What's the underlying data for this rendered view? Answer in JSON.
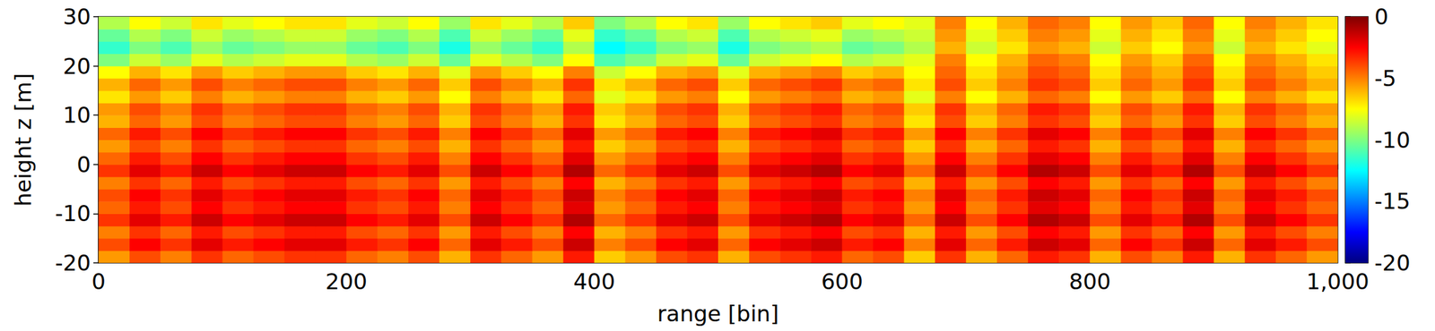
{
  "chart_data": {
    "type": "heatmap",
    "xlabel": "range [bin]",
    "ylabel": "height z [m]",
    "xlim": [
      0,
      1000
    ],
    "xticks": [
      0,
      200,
      400,
      600,
      800,
      1000
    ],
    "ylim": [
      -20,
      30
    ],
    "yticks": [
      -20,
      -10,
      0,
      10,
      20,
      30
    ],
    "x_bins": [
      0,
      25,
      50,
      75,
      100,
      125,
      150,
      175,
      200,
      225,
      250,
      275,
      300,
      325,
      350,
      375,
      400,
      425,
      450,
      475,
      500,
      525,
      550,
      575,
      600,
      625,
      650,
      675,
      700,
      725,
      750,
      775,
      800,
      825,
      850,
      875,
      900,
      925,
      950,
      975,
      1000
    ],
    "z_bins": [
      -20,
      -17.5,
      -15,
      -12.5,
      -10,
      -7.5,
      -5,
      -2.5,
      0,
      2.5,
      5,
      7.5,
      10,
      12.5,
      15,
      17.5,
      20,
      22.5,
      25,
      27.5,
      30
    ],
    "values": [
      [
        -5.5,
        -4,
        -5,
        -3.5,
        -4.5,
        -4,
        -3.5,
        -3.5,
        -4.5,
        -5,
        -4,
        -6,
        -3.5,
        -4.5,
        -5.5,
        -3,
        -6.5,
        -5.5,
        -4,
        -3.5,
        -6,
        -4,
        -3.5,
        -3,
        -4.5,
        -4,
        -6.5,
        -3.5,
        -6,
        -4.5,
        -3,
        -3.5,
        -6,
        -4,
        -5,
        -3,
        -6,
        -3.5,
        -4.5,
        -5.5
      ],
      [
        -4,
        -2.5,
        -3.5,
        -2,
        -3,
        -2.5,
        -2,
        -2,
        -3,
        -3.5,
        -2.5,
        -4.5,
        -2,
        -3,
        -4,
        -1.5,
        -5,
        -4,
        -2.5,
        -2,
        -4.5,
        -2.5,
        -2,
        -1.5,
        -3,
        -2.5,
        -5,
        -2,
        -4.5,
        -3,
        -1.5,
        -2,
        -4.5,
        -2.5,
        -3.5,
        -1.5,
        -4.5,
        -2,
        -3,
        -4
      ],
      [
        -5,
        -3.5,
        -4.5,
        -3,
        -4,
        -3.5,
        -3,
        -3,
        -4,
        -4.5,
        -3.5,
        -5.5,
        -3,
        -4,
        -5,
        -2.5,
        -6,
        -5,
        -3.5,
        -3,
        -5.5,
        -3.5,
        -3,
        -2.5,
        -4,
        -3.5,
        -6,
        -3,
        -5.5,
        -4,
        -2.5,
        -3,
        -5.5,
        -3.5,
        -4.5,
        -2.5,
        -5.5,
        -3,
        -4,
        -5
      ],
      [
        -3.5,
        -2,
        -3,
        -1.5,
        -2.5,
        -2,
        -1.5,
        -1.5,
        -2.5,
        -3,
        -2,
        -4,
        -1.5,
        -2.5,
        -3.5,
        -1,
        -4.5,
        -3.5,
        -2,
        -1.5,
        -4,
        -2,
        -1.5,
        -1,
        -2.5,
        -2,
        -4.5,
        -1.5,
        -4,
        -2.5,
        -1,
        -1.5,
        -4,
        -2,
        -3,
        -1,
        -4,
        -1.5,
        -2.5,
        -3.5
      ],
      [
        -4.5,
        -3,
        -4,
        -2.5,
        -3.5,
        -3,
        -2.5,
        -2.5,
        -3.5,
        -4,
        -3,
        -5,
        -2.5,
        -3.5,
        -4.5,
        -2,
        -5.5,
        -4.5,
        -3,
        -2.5,
        -5,
        -3,
        -2.5,
        -2,
        -3.5,
        -3,
        -5.5,
        -2.5,
        -5,
        -3.5,
        -2,
        -2.5,
        -5,
        -3,
        -4,
        -2,
        -5,
        -2.5,
        -3.5,
        -4.5
      ],
      [
        -4,
        -2.5,
        -3.5,
        -2,
        -3,
        -2.5,
        -2,
        -2,
        -3,
        -3.5,
        -2.5,
        -4.5,
        -2,
        -3,
        -4,
        -1.5,
        -5,
        -4,
        -2.5,
        -2,
        -4.5,
        -2.5,
        -2,
        -1.5,
        -3,
        -2.5,
        -5,
        -2,
        -4.5,
        -3,
        -1.5,
        -2,
        -4.5,
        -2.5,
        -3.5,
        -1.5,
        -4.5,
        -2,
        -3,
        -4
      ],
      [
        -5,
        -3.5,
        -4.5,
        -3,
        -4,
        -3.5,
        -3,
        -3,
        -4,
        -4.5,
        -3.5,
        -5.5,
        -3,
        -4,
        -5,
        -2.5,
        -6,
        -5,
        -3.5,
        -3,
        -5.5,
        -3.5,
        -3,
        -2.5,
        -4,
        -3.5,
        -6,
        -3,
        -5.5,
        -4,
        -2.5,
        -3,
        -5.5,
        -3.5,
        -4.5,
        -2.5,
        -5.5,
        -3,
        -4,
        -5
      ],
      [
        -3.5,
        -2,
        -3,
        -1.5,
        -2.5,
        -2,
        -1.5,
        -1.5,
        -2.5,
        -3,
        -2,
        -4,
        -1.5,
        -2.5,
        -3.5,
        -1,
        -4.5,
        -3.5,
        -2,
        -1.5,
        -4,
        -2,
        -1.5,
        -1,
        -2.5,
        -2,
        -4.5,
        -1.5,
        -4,
        -2.5,
        -1,
        -1.5,
        -4,
        -2,
        -3,
        -1,
        -4,
        -1.5,
        -2.5,
        -3.5
      ],
      [
        -4.5,
        -3,
        -4,
        -2.5,
        -3.5,
        -3,
        -2.5,
        -2.5,
        -3.5,
        -4,
        -3,
        -5,
        -2.5,
        -3.5,
        -4.5,
        -2,
        -5.5,
        -4.5,
        -3,
        -2.5,
        -5,
        -3,
        -2.5,
        -2,
        -3.5,
        -3,
        -5.5,
        -2.5,
        -5,
        -3.5,
        -2,
        -2.5,
        -5,
        -3,
        -4,
        -2,
        -5,
        -2.5,
        -3.5,
        -4.5
      ],
      [
        -5.5,
        -4,
        -5,
        -3.5,
        -4.5,
        -4,
        -3.5,
        -3.5,
        -4.5,
        -5,
        -4,
        -6,
        -3.5,
        -4.5,
        -5.5,
        -3,
        -6.5,
        -5.5,
        -4,
        -3.5,
        -6,
        -4,
        -3.5,
        -3,
        -4.5,
        -4,
        -6.5,
        -3.5,
        -6,
        -4.5,
        -3,
        -3.5,
        -6,
        -4,
        -5,
        -3,
        -6,
        -3.5,
        -4.5,
        -5.5
      ],
      [
        -4.5,
        -3,
        -4,
        -2.5,
        -3.5,
        -3,
        -2.5,
        -2.5,
        -3.5,
        -4,
        -3,
        -5,
        -2.5,
        -3.5,
        -4.5,
        -2,
        -5.5,
        -4.5,
        -3,
        -2.5,
        -5,
        -3,
        -2.5,
        -2,
        -3.5,
        -3,
        -5.5,
        -2.5,
        -5,
        -3.5,
        -2,
        -2.5,
        -5,
        -3,
        -4,
        -2,
        -5,
        -2.5,
        -3.5,
        -4.5
      ],
      [
        -6,
        -4.5,
        -5.5,
        -4,
        -5,
        -4.5,
        -4,
        -4,
        -5,
        -5.5,
        -4.5,
        -6.5,
        -4,
        -5,
        -6,
        -3.5,
        -7,
        -6,
        -4.5,
        -4,
        -6.5,
        -4.5,
        -4,
        -3.5,
        -5,
        -4.5,
        -7,
        -4,
        -6.5,
        -5,
        -3.5,
        -4,
        -6.5,
        -4.5,
        -5.5,
        -3.5,
        -6.5,
        -4,
        -5,
        -6
      ],
      [
        -5.5,
        -4,
        -5,
        -3.5,
        -4.5,
        -4,
        -3.5,
        -3.5,
        -4.5,
        -5,
        -4,
        -6,
        -3.5,
        -4.5,
        -5.5,
        -3,
        -6.5,
        -5.5,
        -4,
        -3.5,
        -6,
        -4,
        -3.5,
        -3,
        -4.5,
        -4,
        -6.5,
        -3.5,
        -6,
        -4.5,
        -3,
        -3.5,
        -6,
        -4,
        -5,
        -3,
        -6,
        -3.5,
        -4.5,
        -5.5
      ],
      [
        -7,
        -5.5,
        -6.5,
        -5,
        -6,
        -5.5,
        -5,
        -5,
        -6,
        -6.5,
        -5.5,
        -7.5,
        -5,
        -6,
        -7,
        -4.5,
        -8,
        -7,
        -5.5,
        -5,
        -7.5,
        -5.5,
        -5,
        -4.5,
        -6,
        -5.5,
        -8,
        -5,
        -7.5,
        -6,
        -4.5,
        -5,
        -7.5,
        -5.5,
        -6.5,
        -4.5,
        -7.5,
        -5,
        -6,
        -7
      ],
      [
        -6,
        -4.5,
        -5.5,
        -4,
        -5,
        -4.5,
        -4,
        -4,
        -5,
        -5.5,
        -4.5,
        -6.5,
        -4,
        -5,
        -6,
        -3.5,
        -7,
        -6,
        -4.5,
        -4,
        -6.5,
        -4.5,
        -4,
        -3.5,
        -5,
        -4.5,
        -7,
        -4,
        -6.5,
        -5,
        -3.5,
        -4,
        -6.5,
        -4.5,
        -5.5,
        -3.5,
        -6.5,
        -4,
        -5,
        -6
      ],
      [
        -7.5,
        -6,
        -7,
        -5.5,
        -6.5,
        -6,
        -5.5,
        -5.5,
        -6.5,
        -7,
        -6,
        -8,
        -5.5,
        -6.5,
        -7.5,
        -5,
        -8.5,
        -7.5,
        -6,
        -5.5,
        -8,
        -6,
        -5.5,
        -5,
        -6.5,
        -6,
        -7.5,
        -4.5,
        -7,
        -5.5,
        -4,
        -4.5,
        -7,
        -5,
        -6,
        -4,
        -7,
        -4.5,
        -5.5,
        -6.5
      ],
      [
        -10,
        -8.5,
        -9.5,
        -8,
        -9,
        -8.5,
        -8,
        -8,
        -9,
        -9.5,
        -8.5,
        -10.5,
        -8,
        -9,
        -10,
        -7.5,
        -11,
        -10,
        -8.5,
        -8,
        -10.5,
        -8.5,
        -8,
        -7.5,
        -9,
        -8.5,
        -8,
        -5,
        -7.5,
        -6,
        -4.5,
        -5,
        -7.5,
        -5.5,
        -6.5,
        -4.5,
        -7.5,
        -5,
        -6,
        -7
      ],
      [
        -11.5,
        -10,
        -11,
        -9.5,
        -10.5,
        -10,
        -9.5,
        -9.5,
        -10.5,
        -11,
        -10,
        -12,
        -9.5,
        -10.5,
        -11.5,
        -9,
        -12.5,
        -11.5,
        -10,
        -9.5,
        -12,
        -10,
        -9.5,
        -9,
        -10.5,
        -10,
        -9,
        -6,
        -8.5,
        -7,
        -5.5,
        -6,
        -8.5,
        -6.5,
        -7.5,
        -5.5,
        -8.5,
        -6,
        -7,
        -8
      ],
      [
        -10.5,
        -9,
        -10,
        -8.5,
        -9.5,
        -9,
        -8.5,
        -8.5,
        -9.5,
        -10,
        -9,
        -11,
        -8.5,
        -9.5,
        -10.5,
        -8,
        -11.5,
        -10.5,
        -9,
        -8.5,
        -11,
        -9,
        -8.5,
        -8,
        -9.5,
        -9,
        -8.5,
        -5.5,
        -8,
        -6.5,
        -5,
        -5.5,
        -8,
        -6,
        -7,
        -5,
        -8,
        -5.5,
        -6.5,
        -7.5
      ],
      [
        -9,
        -7.5,
        -8.5,
        -7,
        -8,
        -7.5,
        -7,
        -7,
        -8,
        -8.5,
        -7.5,
        -9.5,
        -7,
        -8,
        -9,
        -6.5,
        -10,
        -9,
        -7.5,
        -7,
        -9.5,
        -7.5,
        -7,
        -6.5,
        -8,
        -7.5,
        -8,
        -5,
        -7.5,
        -6,
        -4.5,
        -5,
        -7.5,
        -5.5,
        -6.5,
        -4.5,
        -7.5,
        -5,
        -6,
        -7
      ]
    ],
    "colorbar": {
      "range": [
        -20,
        0
      ],
      "ticks": [
        -20,
        -15,
        -10,
        -5,
        0
      ]
    }
  }
}
